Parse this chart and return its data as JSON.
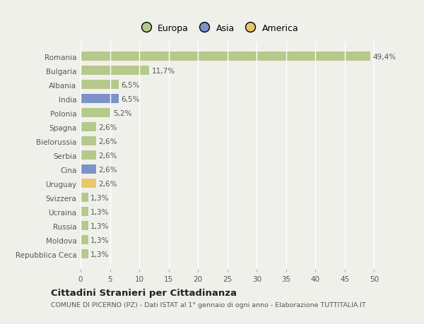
{
  "categories": [
    "Repubblica Ceca",
    "Moldova",
    "Russia",
    "Ucraina",
    "Svizzera",
    "Uruguay",
    "Cina",
    "Serbia",
    "Bielorussia",
    "Spagna",
    "Polonia",
    "India",
    "Albania",
    "Bulgaria",
    "Romania"
  ],
  "values": [
    1.3,
    1.3,
    1.3,
    1.3,
    1.3,
    2.6,
    2.6,
    2.6,
    2.6,
    2.6,
    5.2,
    6.5,
    6.5,
    11.7,
    49.4
  ],
  "labels": [
    "1,3%",
    "1,3%",
    "1,3%",
    "1,3%",
    "1,3%",
    "2,6%",
    "2,6%",
    "2,6%",
    "2,6%",
    "2,6%",
    "5,2%",
    "6,5%",
    "6,5%",
    "11,7%",
    "49,4%"
  ],
  "continents": [
    "Europa",
    "Europa",
    "Europa",
    "Europa",
    "Europa",
    "America",
    "Asia",
    "Europa",
    "Europa",
    "Europa",
    "Europa",
    "Asia",
    "Europa",
    "Europa",
    "Europa"
  ],
  "colors": {
    "Europa": "#b5c98a",
    "Asia": "#7b93c8",
    "America": "#e8c76e"
  },
  "background_color": "#f0f0eb",
  "grid_color": "#ffffff",
  "title": "Cittadini Stranieri per Cittadinanza",
  "subtitle": "COMUNE DI PICERNO (PZ) - Dati ISTAT al 1° gennaio di ogni anno - Elaborazione TUTTITALIA.IT",
  "xlim": [
    0,
    52
  ],
  "xticks": [
    0,
    5,
    10,
    15,
    20,
    25,
    30,
    35,
    40,
    45,
    50
  ],
  "bar_height": 0.65
}
